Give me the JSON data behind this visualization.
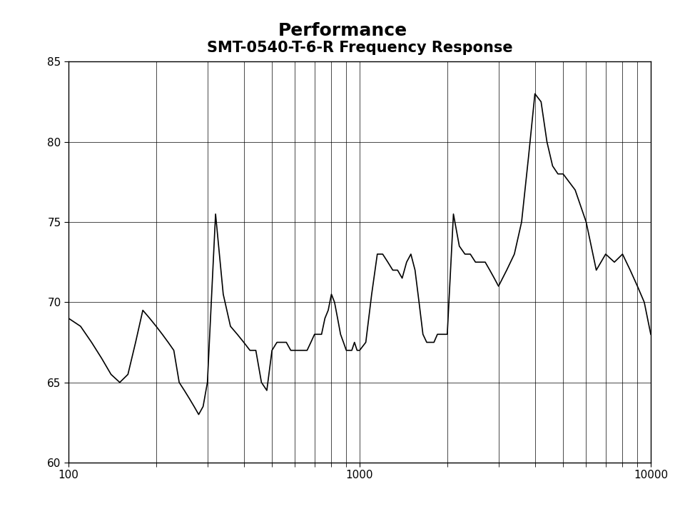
{
  "title": "Performance",
  "chart_title": "SMT-0540-T-6-R Frequency Response",
  "xlim": [
    100,
    10000
  ],
  "ylim": [
    60,
    85
  ],
  "yticks": [
    60,
    65,
    70,
    75,
    80,
    85
  ],
  "xticks": [
    100,
    1000,
    10000
  ],
  "title_fontsize": 18,
  "chart_title_fontsize": 15,
  "line_color": "#000000",
  "bg_color": "#ffffff",
  "curve_x": [
    100,
    110,
    120,
    130,
    140,
    150,
    160,
    170,
    180,
    190,
    200,
    210,
    220,
    230,
    240,
    250,
    260,
    270,
    280,
    290,
    300,
    320,
    340,
    360,
    380,
    400,
    420,
    440,
    460,
    480,
    500,
    520,
    540,
    560,
    580,
    600,
    620,
    640,
    660,
    680,
    700,
    720,
    740,
    760,
    780,
    800,
    820,
    840,
    860,
    880,
    900,
    920,
    940,
    960,
    980,
    1000,
    1050,
    1100,
    1150,
    1200,
    1250,
    1300,
    1350,
    1400,
    1450,
    1500,
    1550,
    1600,
    1650,
    1700,
    1750,
    1800,
    1850,
    1900,
    1950,
    2000,
    2100,
    2200,
    2300,
    2400,
    2500,
    2600,
    2700,
    2800,
    2900,
    3000,
    3200,
    3400,
    3600,
    3800,
    4000,
    4200,
    4400,
    4600,
    4800,
    5000,
    5500,
    6000,
    6500,
    7000,
    7500,
    8000,
    8500,
    9000,
    9500,
    10000
  ],
  "curve_y": [
    69.0,
    68.5,
    67.5,
    66.5,
    65.5,
    65.0,
    65.5,
    67.5,
    69.5,
    69.0,
    68.5,
    68.0,
    67.5,
    67.0,
    65.0,
    64.5,
    64.0,
    63.5,
    63.0,
    63.5,
    65.0,
    75.5,
    70.5,
    68.5,
    68.0,
    67.5,
    67.0,
    67.0,
    65.0,
    64.5,
    67.0,
    67.5,
    67.5,
    67.5,
    67.0,
    67.0,
    67.0,
    67.0,
    67.0,
    67.5,
    68.0,
    68.0,
    68.0,
    69.0,
    69.5,
    70.5,
    70.0,
    69.0,
    68.0,
    67.5,
    67.0,
    67.0,
    67.0,
    67.5,
    67.0,
    67.0,
    67.5,
    70.5,
    73.0,
    73.0,
    72.5,
    72.0,
    72.0,
    71.5,
    72.5,
    73.0,
    72.0,
    70.0,
    68.0,
    67.5,
    67.5,
    67.5,
    68.0,
    68.0,
    68.0,
    68.0,
    75.5,
    73.5,
    73.0,
    73.0,
    72.5,
    72.5,
    72.5,
    72.0,
    71.5,
    71.0,
    72.0,
    73.0,
    75.0,
    79.0,
    83.0,
    82.5,
    80.0,
    78.5,
    78.0,
    78.0,
    77.0,
    75.0,
    72.0,
    73.0,
    72.5,
    73.0,
    72.0,
    71.0,
    70.0,
    68.0
  ]
}
